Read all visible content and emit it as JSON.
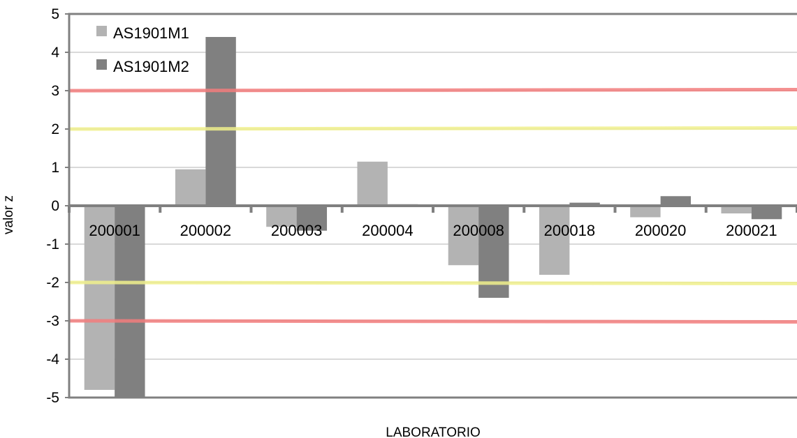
{
  "chart_data": {
    "type": "bar",
    "categories": [
      "200001",
      "200002",
      "200003",
      "200004",
      "200008",
      "200018",
      "200020",
      "200021"
    ],
    "series": [
      {
        "name": "AS1901M1",
        "color": "#b3b3b3",
        "values": [
          -4.8,
          0.95,
          -0.55,
          1.15,
          -1.55,
          -1.8,
          -0.3,
          -0.2
        ]
      },
      {
        "name": "AS1901M2",
        "color": "#808080",
        "values": [
          -5.0,
          4.4,
          -0.65,
          0.04,
          -2.4,
          0.08,
          0.25,
          -0.35
        ]
      }
    ],
    "ylim": [
      -5,
      5
    ],
    "yticks": [
      5,
      4,
      3,
      2,
      1,
      0,
      -1,
      -2,
      -3,
      -4,
      -5
    ],
    "ylabel": "valor z",
    "xlabel": "LABORATORIO",
    "grid": true,
    "legend_position": "top-left",
    "reference_lines": [
      {
        "y": 3,
        "color": "#f27c7c"
      },
      {
        "y": -3,
        "color": "#f27c7c"
      },
      {
        "y": 2,
        "color": "#f0f08c"
      },
      {
        "y": -2,
        "color": "#f0f08c"
      }
    ]
  }
}
